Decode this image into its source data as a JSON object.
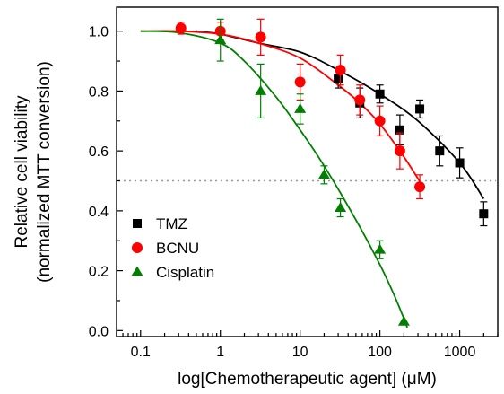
{
  "chart_data": {
    "type": "scatter",
    "xlabel": "log[Chemotherapeutic agent] (μM)",
    "ylabel_line1": "Relative cell viability",
    "ylabel_line2": "(normalized MTT conversion)",
    "x_scale": "log",
    "xlim": [
      0.05,
      3000
    ],
    "ylim": [
      -0.02,
      1.08
    ],
    "x_ticks": [
      0.1,
      1,
      10,
      100,
      1000
    ],
    "x_tick_labels": [
      "0.1",
      "1",
      "10",
      "100",
      "1000"
    ],
    "y_ticks": [
      0.0,
      0.2,
      0.4,
      0.6,
      0.8,
      1.0
    ],
    "y_tick_labels": [
      "0.0",
      "0.2",
      "0.4",
      "0.6",
      "0.8",
      "1.0"
    ],
    "grid": false,
    "legend_position": "bottom-left",
    "reference_line": {
      "y": 0.5,
      "style": "dotted",
      "color": "#999999"
    },
    "series": [
      {
        "name": "TMZ",
        "marker": "square",
        "color": "#000000",
        "points": [
          {
            "x": 30,
            "y": 0.84,
            "err": 0.03
          },
          {
            "x": 56,
            "y": 0.76,
            "err": 0.05
          },
          {
            "x": 100,
            "y": 0.79,
            "err": 0.03
          },
          {
            "x": 178,
            "y": 0.67,
            "err": 0.05
          },
          {
            "x": 316,
            "y": 0.74,
            "err": 0.03
          },
          {
            "x": 562,
            "y": 0.6,
            "err": 0.05
          },
          {
            "x": 1000,
            "y": 0.56,
            "err": 0.05
          },
          {
            "x": 2000,
            "y": 0.39,
            "err": 0.04
          }
        ],
        "fit_curve": {
          "x": [
            0.5,
            1,
            3,
            10,
            30,
            100,
            300,
            1000,
            2000
          ],
          "y": [
            1.0,
            0.99,
            0.96,
            0.93,
            0.87,
            0.79,
            0.7,
            0.56,
            0.44
          ]
        }
      },
      {
        "name": "BCNU",
        "marker": "circle",
        "color": "#ff0000",
        "points": [
          {
            "x": 0.32,
            "y": 1.01,
            "err": 0.02
          },
          {
            "x": 1,
            "y": 1.0,
            "err": 0.03
          },
          {
            "x": 3.2,
            "y": 0.98,
            "err": 0.06
          },
          {
            "x": 10,
            "y": 0.83,
            "err": 0.06
          },
          {
            "x": 32,
            "y": 0.87,
            "err": 0.05
          },
          {
            "x": 56,
            "y": 0.77,
            "err": 0.05
          },
          {
            "x": 100,
            "y": 0.7,
            "err": 0.05
          },
          {
            "x": 178,
            "y": 0.6,
            "err": 0.06
          },
          {
            "x": 316,
            "y": 0.48,
            "err": 0.04
          }
        ],
        "fit_curve": {
          "x": [
            0.1,
            0.3,
            1,
            3,
            10,
            30,
            56,
            100,
            200,
            330
          ],
          "y": [
            1.0,
            1.0,
            0.99,
            0.96,
            0.91,
            0.82,
            0.76,
            0.69,
            0.58,
            0.49
          ]
        }
      },
      {
        "name": "Cisplatin",
        "marker": "triangle",
        "color": "#008000",
        "points": [
          {
            "x": 1,
            "y": 0.97,
            "err": 0.07
          },
          {
            "x": 3.2,
            "y": 0.8,
            "err": 0.09
          },
          {
            "x": 10,
            "y": 0.74,
            "err": 0.05
          },
          {
            "x": 20,
            "y": 0.52,
            "err": 0.03
          },
          {
            "x": 32,
            "y": 0.41,
            "err": 0.03
          },
          {
            "x": 100,
            "y": 0.27,
            "err": 0.03
          },
          {
            "x": 200,
            "y": 0.03,
            "err": 0.0
          }
        ],
        "fit_curve": {
          "x": [
            0.1,
            0.3,
            1,
            2,
            5,
            10,
            20,
            50,
            100,
            150,
            200,
            220
          ],
          "y": [
            1.0,
            0.995,
            0.96,
            0.9,
            0.78,
            0.67,
            0.55,
            0.37,
            0.22,
            0.12,
            0.04,
            0.01
          ]
        }
      }
    ]
  }
}
